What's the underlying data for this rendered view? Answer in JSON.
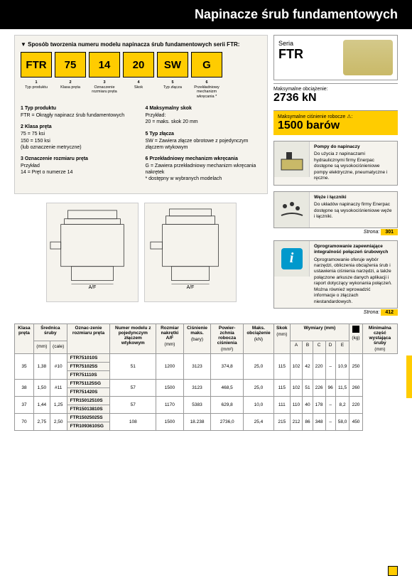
{
  "header": {
    "title": "Napinacze śrub fundamentowych"
  },
  "model_box": {
    "title": "Sposób tworzenia numeru modelu napinacza śrub fundamentowych serii FTR:",
    "tiles": [
      "FTR",
      "75",
      "14",
      "20",
      "SW",
      "G"
    ],
    "tile_labels": [
      {
        "n": "1",
        "t": "Typ produktu"
      },
      {
        "n": "2",
        "t": "Klasa pręta"
      },
      {
        "n": "3",
        "t": "Oznaczenie rozmiaru pręta"
      },
      {
        "n": "4",
        "t": "Skok"
      },
      {
        "n": "5",
        "t": "Typ złącza"
      },
      {
        "n": "6",
        "t": "Przekładniowy mechanizm wkręcania *"
      }
    ],
    "defs_left": [
      {
        "n": "1",
        "t": "Typ produktu",
        "b": "FTR = Okrągły napinacz śrub fundamentowych"
      },
      {
        "n": "2",
        "t": "Klasa pręta",
        "b": "75 = 75 ksi\n150 = 150 ksi\n(lub oznaczenie metryczne)"
      },
      {
        "n": "3",
        "t": "Oznaczenie rozmiaru pręta",
        "b": "Przykład\n14 = Pręt o numerze 14"
      }
    ],
    "defs_right": [
      {
        "n": "4",
        "t": "Maksymalny skok",
        "b": "Przykład:\n20 = maks. skok 20 mm"
      },
      {
        "n": "5",
        "t": "Typ złącza",
        "b": "SW = Zawiera złącze obrotowe z pojedynczym złączem wtykowym"
      },
      {
        "n": "6",
        "t": "Przekładniowy mechanizm wkręcania",
        "b": "G = Zawiera przekładniowy mechanizm wkręcania nakrętek\n* dostępny w wybranych modelach"
      }
    ]
  },
  "series": {
    "label": "Seria",
    "value": "FTR"
  },
  "stat1": {
    "label": "Maksymalne obciążenie:",
    "value": "2736 kN"
  },
  "stat2": {
    "label": "Maksymalne ciśnienie robocze ⚠:",
    "value": "1500 barów"
  },
  "cards": [
    {
      "title": "Pompy do napinaczy",
      "body": "Do użycia z napinaczami hydraulicznymi firmy Enerpac dostępne są wysokociśnieniowe pompy elektryczne, pneumatyczne i ręczne."
    },
    {
      "title": "Węże i łączniki",
      "body": "Do układów napinaczy firmy Enerpac dostępne są wysokociśnieniowe węże i łączniki."
    }
  ],
  "page_ref1": {
    "label": "Strona:",
    "page": "301"
  },
  "info_card": {
    "title": "Oprogramowanie zapewniające integralność połączeń śrubowych",
    "body": "Oprogramowanie oferuje wybór narzędzi, obliczenia obciążenia śrub i ustawienia ciśnienia narzędzi, a także połączone arkusze danych aplikacji i raport dotyczący wykonania połączeń. Można również wprowadzić informacje o złączach niestandardowych."
  },
  "page_ref2": {
    "label": "Strona:",
    "page": "412"
  },
  "af_label": "A/F",
  "table": {
    "headers": [
      {
        "h": "Klasa pręta",
        "u": ""
      },
      {
        "h": "Średnica śruby",
        "u": "(mm)",
        "u2": "(cale)"
      },
      {
        "h": "Oznac-zenie rozmiaru pręta",
        "u": ""
      },
      {
        "h": "Numer modelu z pojedynczym złączem wtykowym",
        "u": ""
      },
      {
        "h": "Rozmiar nakrętki A/F",
        "u": "(mm)"
      },
      {
        "h": "Ciśnienie maks.",
        "u": "(bary)"
      },
      {
        "h": "Powier-zchnia robocza ciśnienia",
        "u": "(mm²)"
      },
      {
        "h": "Maks. obciążenie",
        "u": "(kN)"
      },
      {
        "h": "Skok",
        "u": "(mm)"
      },
      {
        "h": "Wymiary (mm)",
        "sub": [
          "A",
          "B",
          "C",
          "D",
          "E"
        ]
      },
      {
        "h": "⬛",
        "u": "(kg)"
      },
      {
        "h": "Minimalna część wystająca śruby",
        "u": "(mm)"
      }
    ],
    "rows": [
      {
        "klasa": "35",
        "mm": "1,38",
        "cale": "#10",
        "models": [
          "FTR751010S",
          "FTR751025S",
          "FTR751110S"
        ],
        "af": "51",
        "bar": "1200",
        "pow": "3123",
        "obc": "374,8",
        "skok": "25,0",
        "A": "115",
        "B": "102",
        "C": "42",
        "D": "220",
        "E": "–",
        "kg": "10,9",
        "min": "250"
      },
      {
        "klasa": "38",
        "mm": "1,50",
        "cale": "#11",
        "models": [
          "FTR751125SG",
          "FTR751420S"
        ],
        "af": "57",
        "bar": "1500",
        "pow": "3123",
        "obc": "468,5",
        "skok": "25,0",
        "A": "115",
        "B": "102",
        "C": "51",
        "D": "226",
        "E": "96",
        "kg": "11,5",
        "min": "260"
      },
      {
        "klasa": "37",
        "mm": "1,44",
        "cale": "1,25",
        "models": [
          "FTR15012510S",
          "FTR15013810S"
        ],
        "af": "57",
        "bar": "1170",
        "pow": "5383",
        "obc": "629,8",
        "skok": "10,0",
        "A": "111",
        "B": "110",
        "C": "40",
        "D": "178",
        "E": "–",
        "kg": "8,2",
        "min": "220"
      },
      {
        "klasa": "70",
        "mm": "2,75",
        "cale": "2,50",
        "models": [
          "FTR15025025S",
          "FTR1093610SG"
        ],
        "af": "108",
        "bar": "1500",
        "pow": "18.238",
        "obc": "2736,0",
        "skok": "25,4",
        "A": "215",
        "B": "212",
        "C": "86",
        "D": "348",
        "E": "–",
        "kg": "58,0",
        "min": "450"
      }
    ]
  }
}
